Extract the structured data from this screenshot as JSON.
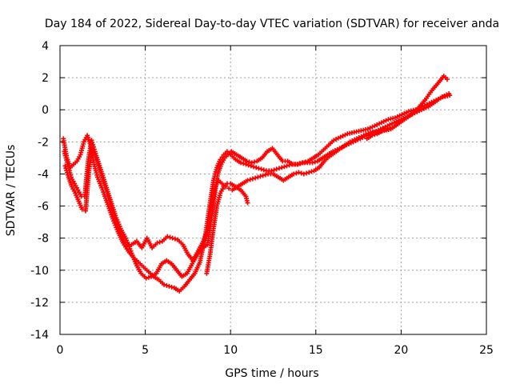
{
  "chart_data": {
    "type": "scatter",
    "title": "Day 184 of 2022, Sidereal Day-to-day VTEC variation (SDTVAR) for receiver anda",
    "xlabel": "GPS time / hours",
    "ylabel": "SDTVAR / TECUs",
    "xlim": [
      0,
      25
    ],
    "ylim": [
      -14,
      4
    ],
    "xticks": [
      0,
      5,
      10,
      15,
      20,
      25
    ],
    "yticks": [
      -14,
      -12,
      -10,
      -8,
      -6,
      -4,
      -2,
      0,
      2,
      4
    ],
    "grid": true,
    "legend": "none",
    "marker": "plus",
    "color": "#ff0000",
    "series": [
      {
        "x": [
          0.2,
          0.4,
          0.6,
          0.8,
          1.0,
          1.2,
          1.4,
          1.6,
          1.8,
          2.0,
          2.2,
          2.5,
          2.8,
          3.1,
          3.4,
          3.7,
          4.0,
          4.3,
          4.6,
          4.9,
          5.2,
          5.5,
          5.8,
          6.1,
          6.4,
          6.7,
          7.0,
          7.3,
          7.6,
          7.9,
          8.2,
          8.5,
          8.8,
          9.0,
          9.2,
          9.4,
          9.6,
          9.8,
          10.0,
          10.3,
          10.6,
          10.9,
          11.2,
          11.5,
          11.8,
          12.1,
          12.4,
          12.7,
          13.0,
          13.3,
          13.6,
          13.9,
          14.2,
          14.5,
          14.8,
          15.1,
          15.4,
          15.7,
          16.0,
          16.4,
          16.8,
          17.2,
          17.6,
          18.0,
          18.4,
          18.8,
          19.2,
          19.6,
          20.0,
          20.4,
          20.8,
          21.2,
          21.6,
          22.0,
          22.4,
          22.8
        ],
        "y": [
          -1.8,
          -3.0,
          -3.6,
          -3.4,
          -3.2,
          -2.8,
          -2.0,
          -1.6,
          -2.2,
          -3.4,
          -4.2,
          -5.0,
          -5.9,
          -6.8,
          -7.6,
          -8.3,
          -8.8,
          -9.2,
          -9.5,
          -9.8,
          -10.1,
          -10.4,
          -10.6,
          -10.9,
          -11.0,
          -11.1,
          -11.3,
          -11.0,
          -10.6,
          -10.2,
          -9.5,
          -8.0,
          -5.8,
          -4.4,
          -3.6,
          -3.1,
          -2.8,
          -2.6,
          -2.8,
          -3.1,
          -3.3,
          -3.4,
          -3.5,
          -3.6,
          -3.7,
          -3.8,
          -3.8,
          -3.7,
          -3.6,
          -3.5,
          -3.4,
          -3.4,
          -3.3,
          -3.3,
          -3.3,
          -3.2,
          -3.0,
          -2.8,
          -2.6,
          -2.4,
          -2.2,
          -2.0,
          -1.8,
          -1.6,
          -1.4,
          -1.2,
          -1.0,
          -0.8,
          -0.6,
          -0.4,
          -0.2,
          0.0,
          0.2,
          0.5,
          0.8,
          1.0
        ]
      },
      {
        "x": [
          0.3,
          0.5,
          0.7,
          0.9,
          1.1,
          1.3,
          1.5,
          1.7,
          1.9,
          2.1,
          2.4,
          2.7,
          3.0,
          3.3,
          3.6,
          3.9,
          4.2,
          4.5,
          4.8,
          5.1,
          5.4,
          5.7,
          6.0,
          6.3,
          6.6,
          6.9,
          7.2,
          7.5,
          7.8,
          8.1,
          8.4,
          8.7,
          8.9,
          9.1,
          9.3,
          9.5,
          9.7,
          9.9,
          10.1,
          10.4,
          10.7,
          11.0,
          11.3,
          11.6,
          11.9,
          12.2,
          12.5,
          12.8,
          13.1,
          13.4,
          13.7,
          14.0,
          14.3,
          14.6,
          14.9,
          15.2,
          15.5,
          15.8,
          16.2,
          16.6,
          17.0,
          17.4,
          17.8,
          18.2,
          18.6,
          19.0,
          19.4,
          19.8,
          20.2,
          20.6,
          21.0,
          21.4,
          21.8,
          22.2,
          22.5,
          22.7
        ],
        "y": [
          -3.5,
          -4.2,
          -4.8,
          -5.2,
          -5.7,
          -6.2,
          -6.3,
          -3.8,
          -2.4,
          -3.0,
          -4.0,
          -5.0,
          -6.0,
          -7.0,
          -7.8,
          -8.5,
          -8.4,
          -8.2,
          -8.6,
          -8.0,
          -8.6,
          -8.3,
          -8.2,
          -7.9,
          -8.0,
          -8.1,
          -8.4,
          -9.0,
          -9.4,
          -8.8,
          -8.2,
          -7.4,
          -6.0,
          -4.8,
          -4.4,
          -4.6,
          -4.8,
          -4.9,
          -5.0,
          -4.8,
          -4.6,
          -4.4,
          -4.3,
          -4.2,
          -4.1,
          -4.0,
          -4.0,
          -4.2,
          -4.4,
          -4.2,
          -4.0,
          -3.9,
          -4.0,
          -3.9,
          -3.8,
          -3.6,
          -3.2,
          -2.9,
          -2.6,
          -2.3,
          -2.0,
          -1.8,
          -1.6,
          -1.4,
          -1.4,
          -1.3,
          -1.2,
          -0.9,
          -0.6,
          -0.3,
          0.1,
          0.6,
          1.2,
          1.7,
          2.1,
          1.9
        ]
      },
      {
        "x": [
          0.25,
          0.45,
          0.65,
          0.85,
          1.05,
          1.25,
          1.45,
          1.65,
          1.85,
          2.05,
          2.35,
          2.65,
          2.95,
          3.25,
          3.55,
          3.85,
          4.15,
          4.45,
          4.75,
          5.05,
          5.35,
          5.65,
          5.95,
          6.25,
          6.55,
          6.85,
          7.15,
          7.45,
          7.75,
          8.05,
          8.35,
          8.65,
          8.85,
          9.05,
          9.25,
          9.45,
          9.65,
          9.85,
          10.05,
          10.35,
          10.65,
          10.95,
          11.25,
          11.55,
          11.85,
          12.15,
          12.45,
          12.75,
          13.05,
          13.35,
          13.65,
          13.95,
          14.25,
          14.55,
          14.85,
          15.15,
          15.45,
          15.75,
          16.05,
          16.45,
          16.85,
          17.25,
          17.65,
          18.05,
          18.45,
          18.85,
          19.25,
          19.65,
          20.05,
          20.45,
          20.85,
          21.25,
          21.65,
          22.05,
          22.45,
          22.85
        ],
        "y": [
          -2.6,
          -3.4,
          -4.2,
          -4.6,
          -5.0,
          -5.4,
          -5.4,
          -3.2,
          -1.9,
          -2.6,
          -3.6,
          -4.6,
          -5.6,
          -6.6,
          -7.4,
          -8.0,
          -8.8,
          -9.6,
          -10.2,
          -10.5,
          -10.4,
          -10.2,
          -9.6,
          -9.4,
          -9.6,
          -10.0,
          -10.4,
          -10.2,
          -9.6,
          -9.0,
          -8.6,
          -8.4,
          -7.0,
          -5.4,
          -4.0,
          -3.4,
          -3.0,
          -2.8,
          -2.6,
          -2.8,
          -3.0,
          -3.2,
          -3.3,
          -3.2,
          -3.0,
          -2.6,
          -2.4,
          -2.8,
          -3.2,
          -3.2,
          -3.4,
          -3.4,
          -3.3,
          -3.2,
          -3.0,
          -2.8,
          -2.5,
          -2.2,
          -1.9,
          -1.7,
          -1.5,
          -1.4,
          -1.3,
          -1.2,
          -1.0,
          -0.8,
          -0.6,
          -0.5,
          -0.3,
          -0.1,
          0.0,
          0.2,
          0.4,
          0.6,
          0.8,
          0.9
        ]
      },
      {
        "x": [
          8.6,
          8.8,
          9.0,
          9.2,
          9.4,
          9.6,
          9.8,
          10.0,
          10.3,
          10.6,
          10.9,
          11.0
        ],
        "y": [
          -10.2,
          -9.0,
          -7.4,
          -6.0,
          -5.2,
          -4.8,
          -4.6,
          -4.6,
          -4.8,
          -5.0,
          -5.4,
          -5.8
        ]
      },
      {
        "x": [
          18.0,
          18.3,
          18.6,
          18.9,
          19.2,
          19.5
        ],
        "y": [
          -1.8,
          -1.6,
          -1.5,
          -1.3,
          -1.2,
          -1.1
        ]
      }
    ]
  }
}
